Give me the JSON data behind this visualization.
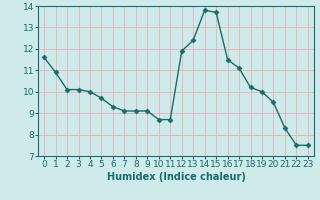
{
  "x": [
    0,
    1,
    2,
    3,
    4,
    5,
    6,
    7,
    8,
    9,
    10,
    11,
    12,
    13,
    14,
    15,
    16,
    17,
    18,
    19,
    20,
    21,
    22,
    23
  ],
  "y": [
    11.6,
    10.9,
    10.1,
    10.1,
    10.0,
    9.7,
    9.3,
    9.1,
    9.1,
    9.1,
    8.7,
    8.7,
    11.9,
    12.4,
    13.8,
    13.7,
    11.5,
    11.1,
    10.2,
    10.0,
    9.5,
    8.3,
    7.5,
    7.5
  ],
  "line_color": "#1a6b6b",
  "marker": "D",
  "marker_size": 2.5,
  "bg_color": "#ceeaea",
  "grid_color": "#e8b0b0",
  "xlabel": "Humidex (Indice chaleur)",
  "xlabel_color": "#1a6b6b",
  "tick_color": "#1a6b6b",
  "ylim": [
    7,
    14
  ],
  "xlim_min": -0.5,
  "xlim_max": 23.5,
  "yticks": [
    7,
    8,
    9,
    10,
    11,
    12,
    13,
    14
  ],
  "xticks": [
    0,
    1,
    2,
    3,
    4,
    5,
    6,
    7,
    8,
    9,
    10,
    11,
    12,
    13,
    14,
    15,
    16,
    17,
    18,
    19,
    20,
    21,
    22,
    23
  ],
  "label_fontsize": 7,
  "tick_fontsize": 6.5
}
